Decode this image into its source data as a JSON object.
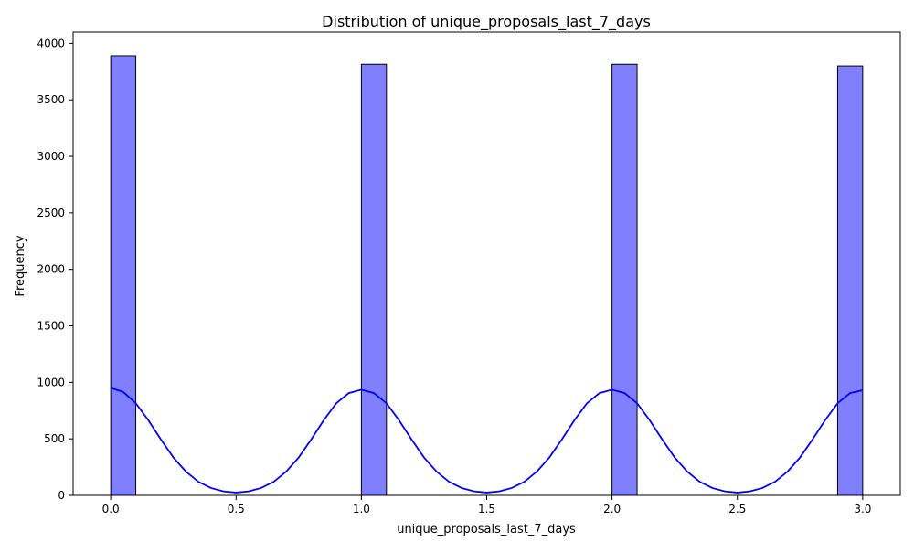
{
  "chart_data": {
    "type": "bar",
    "title": "Distribution of unique_proposals_last_7_days",
    "xlabel": "unique_proposals_last_7_days",
    "ylabel": "Frequency",
    "xlim": [
      -0.15,
      3.15
    ],
    "ylim": [
      0,
      4100
    ],
    "x_ticks": [
      0.0,
      0.5,
      1.0,
      1.5,
      2.0,
      2.5,
      3.0
    ],
    "x_tick_labels": [
      "0.0",
      "0.5",
      "1.0",
      "1.5",
      "2.0",
      "2.5",
      "3.0"
    ],
    "y_ticks": [
      0,
      500,
      1000,
      1500,
      2000,
      2500,
      3000,
      3500,
      4000
    ],
    "y_tick_labels": [
      "0",
      "500",
      "1000",
      "1500",
      "2000",
      "2500",
      "3000",
      "3500",
      "4000"
    ],
    "bins": [
      {
        "x0": 0.0,
        "x1": 0.1,
        "value": 3890
      },
      {
        "x0": 1.0,
        "x1": 1.1,
        "value": 3815
      },
      {
        "x0": 2.0,
        "x1": 2.1,
        "value": 3815
      },
      {
        "x0": 2.9,
        "x1": 3.0,
        "value": 3800
      }
    ],
    "kde": {
      "x": [
        0.0,
        0.05,
        0.1,
        0.15,
        0.2,
        0.25,
        0.3,
        0.35,
        0.4,
        0.45,
        0.5,
        0.55,
        0.6,
        0.65,
        0.7,
        0.75,
        0.8,
        0.85,
        0.9,
        0.95,
        1.0,
        1.05,
        1.1,
        1.15,
        1.2,
        1.25,
        1.3,
        1.35,
        1.4,
        1.45,
        1.5,
        1.55,
        1.6,
        1.65,
        1.7,
        1.75,
        1.8,
        1.85,
        1.9,
        1.95,
        2.0,
        2.05,
        2.1,
        2.15,
        2.2,
        2.25,
        2.3,
        2.35,
        2.4,
        2.45,
        2.5,
        2.55,
        2.6,
        2.65,
        2.7,
        2.75,
        2.8,
        2.85,
        2.9,
        2.95,
        3.0
      ],
      "y": [
        950,
        915,
        815,
        665,
        495,
        335,
        210,
        120,
        65,
        35,
        25,
        35,
        65,
        120,
        210,
        335,
        495,
        665,
        815,
        905,
        935,
        905,
        815,
        665,
        495,
        335,
        210,
        120,
        65,
        35,
        25,
        35,
        65,
        120,
        210,
        335,
        495,
        665,
        815,
        905,
        935,
        905,
        815,
        665,
        495,
        335,
        210,
        120,
        65,
        35,
        25,
        35,
        65,
        120,
        210,
        335,
        495,
        665,
        815,
        905,
        930
      ],
      "color": "#0000ff"
    },
    "bar_color": "#8080ff",
    "bar_edge_color": "#000000",
    "grid": false,
    "legend": false
  }
}
